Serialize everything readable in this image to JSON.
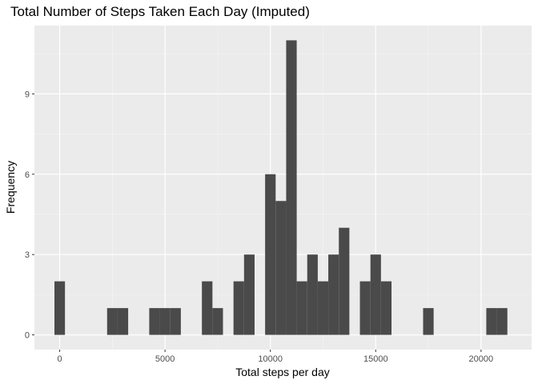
{
  "chart_data": {
    "type": "bar",
    "title": "Total Number of Steps Taken Each Day (Imputed)",
    "xlabel": "Total steps per day",
    "ylabel": "Frequency",
    "xlim": [
      -1200,
      22400
    ],
    "ylim": [
      -0.55,
      11.55
    ],
    "x_ticks": [
      0,
      5000,
      10000,
      15000,
      20000
    ],
    "x_tick_labels": [
      "0",
      "5000",
      "10000",
      "15000",
      "20000"
    ],
    "y_ticks": [
      0,
      3,
      6,
      9
    ],
    "y_tick_labels": [
      "0",
      "3",
      "6",
      "9"
    ],
    "grid": true,
    "bin_width": 500,
    "bins": [
      {
        "x": 0,
        "count": 2
      },
      {
        "x": 2500,
        "count": 1
      },
      {
        "x": 3000,
        "count": 1
      },
      {
        "x": 4500,
        "count": 1
      },
      {
        "x": 5000,
        "count": 1
      },
      {
        "x": 5500,
        "count": 1
      },
      {
        "x": 7000,
        "count": 2
      },
      {
        "x": 7500,
        "count": 1
      },
      {
        "x": 8500,
        "count": 2
      },
      {
        "x": 9000,
        "count": 3
      },
      {
        "x": 10000,
        "count": 6
      },
      {
        "x": 10500,
        "count": 5
      },
      {
        "x": 11000,
        "count": 11
      },
      {
        "x": 11500,
        "count": 2
      },
      {
        "x": 12000,
        "count": 3
      },
      {
        "x": 12500,
        "count": 2
      },
      {
        "x": 13000,
        "count": 3
      },
      {
        "x": 13500,
        "count": 4
      },
      {
        "x": 14500,
        "count": 2
      },
      {
        "x": 15000,
        "count": 3
      },
      {
        "x": 15500,
        "count": 2
      },
      {
        "x": 17500,
        "count": 1
      },
      {
        "x": 20500,
        "count": 1
      },
      {
        "x": 21000,
        "count": 1
      }
    ],
    "colors": {
      "bar": "#4a4a4a",
      "panel": "#ebebeb",
      "grid_major": "#ffffff",
      "grid_minor": "#f5f5f5"
    }
  }
}
